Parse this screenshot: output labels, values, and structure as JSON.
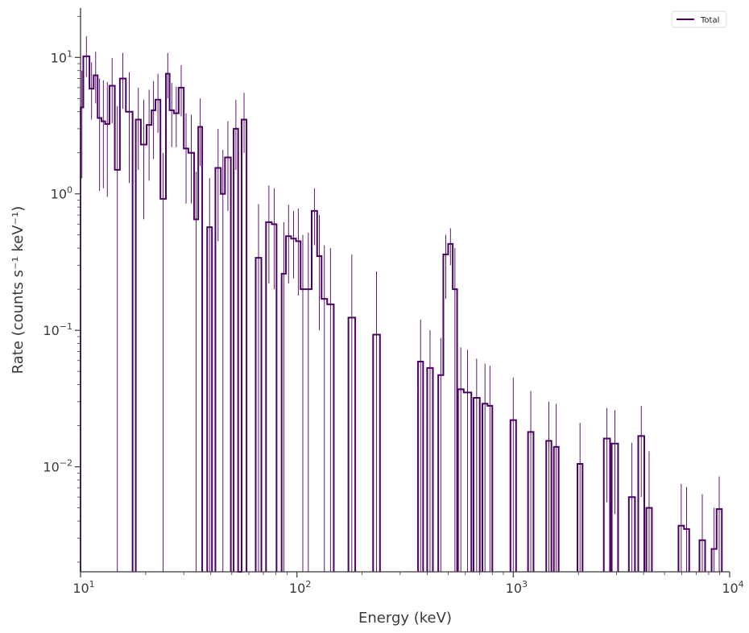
{
  "chart_data": {
    "type": "line",
    "style": "step histogram with error bars",
    "xlabel": "Energy (keV)",
    "ylabel": "Rate (counts s⁻¹ keV⁻¹)",
    "xscale": "log",
    "yscale": "log",
    "xlim": [
      10,
      10000
    ],
    "ylim": [
      0.0017,
      23
    ],
    "x_ticks": [
      {
        "value": 10,
        "base": "10",
        "exp": "1"
      },
      {
        "value": 100,
        "base": "10",
        "exp": "2"
      },
      {
        "value": 1000,
        "base": "10",
        "exp": "3"
      },
      {
        "value": 10000,
        "base": "10",
        "exp": "4"
      }
    ],
    "y_ticks": [
      {
        "value": 10,
        "base": "10",
        "exp": "1"
      },
      {
        "value": 1,
        "base": "10",
        "exp": "0"
      },
      {
        "value": 0.1,
        "base": "10",
        "exp": "−1"
      },
      {
        "value": 0.01,
        "base": "10",
        "exp": "−2"
      }
    ],
    "grid": false,
    "legend": {
      "position": "top-right",
      "entries": [
        "Total"
      ]
    },
    "colors": {
      "series": "#4b0063",
      "axis": "#3a3a3a"
    },
    "series": [
      {
        "name": "Total",
        "bins": [
          [
            10,
            10.3,
            4.3,
            1.3,
            8.0
          ],
          [
            10.3,
            11.0,
            10.2,
            7.2,
            14.3
          ],
          [
            11.0,
            11.5,
            5.9,
            3.5,
            9.2
          ],
          [
            11.5,
            12.0,
            7.4,
            4.6,
            11.0
          ],
          [
            12.0,
            12.5,
            3.6,
            1.05,
            7.0
          ],
          [
            12.5,
            13.0,
            3.4,
            1.1,
            6.8
          ],
          [
            13.0,
            13.6,
            3.25,
            0.95,
            6.6
          ],
          [
            13.6,
            14.4,
            6.2,
            3.3,
            9.9
          ],
          [
            14.4,
            15.2,
            1.5,
            0.0017,
            4.4
          ],
          [
            15.2,
            16.2,
            7.0,
            4.2,
            10.8
          ],
          [
            16.2,
            17.4,
            4.0,
            1.2,
            7.8
          ],
          [
            18.0,
            19.0,
            3.5,
            1.5,
            6.0
          ],
          [
            19.0,
            20.2,
            2.3,
            0.65,
            4.9
          ],
          [
            20.2,
            21.3,
            3.2,
            1.25,
            5.8
          ],
          [
            21.3,
            22.2,
            4.1,
            1.8,
            6.7
          ],
          [
            22.2,
            23.4,
            4.9,
            2.8,
            7.6
          ],
          [
            23.4,
            24.8,
            0.92,
            0.0017,
            2.0
          ],
          [
            24.8,
            25.8,
            7.6,
            5.0,
            10.8
          ],
          [
            25.8,
            27.0,
            4.1,
            2.2,
            6.5
          ],
          [
            27.0,
            28.4,
            3.9,
            2.2,
            6.1
          ],
          [
            28.4,
            30.0,
            6.0,
            3.7,
            8.8
          ],
          [
            30.0,
            31.5,
            2.15,
            0.85,
            3.9
          ],
          [
            31.5,
            33.5,
            2.0,
            0.85,
            3.8
          ],
          [
            33.5,
            35.0,
            0.65,
            0.0017,
            1.45
          ],
          [
            35.0,
            36.5,
            3.1,
            1.6,
            5.0
          ],
          [
            38.5,
            40.5,
            0.57,
            0.0017,
            1.3
          ],
          [
            42.0,
            44.5,
            1.55,
            0.45,
            3.0
          ],
          [
            44.5,
            46.5,
            1.0,
            0.0017,
            2.1
          ],
          [
            46.5,
            49.5,
            1.85,
            0.75,
            3.4
          ],
          [
            51.0,
            53.5,
            3.0,
            1.5,
            4.9
          ],
          [
            53.5,
            55.5,
            0.0017,
            0.0017,
            0.0017
          ],
          [
            55.5,
            58.5,
            3.5,
            2.0,
            5.5
          ],
          [
            64.5,
            68.5,
            0.34,
            0.0017,
            0.84
          ],
          [
            72.0,
            76.5,
            0.62,
            0.22,
            1.15
          ],
          [
            76.5,
            80.5,
            0.6,
            0.2,
            1.1
          ],
          [
            85.0,
            89.0,
            0.26,
            0.0017,
            0.62
          ],
          [
            89.0,
            94.0,
            0.49,
            0.22,
            0.83
          ],
          [
            94.0,
            99.0,
            0.47,
            0.24,
            0.75
          ],
          [
            99.0,
            104.0,
            0.45,
            0.18,
            0.78
          ],
          [
            104.0,
            109.0,
            0.2,
            0.0017,
            0.5
          ],
          [
            109.0,
            117.0,
            0.2,
            0.0017,
            0.52
          ],
          [
            117.0,
            124.0,
            0.75,
            0.42,
            1.1
          ],
          [
            124.0,
            130.0,
            0.35,
            0.1,
            0.7
          ],
          [
            130.0,
            138.0,
            0.17,
            0.0017,
            0.42
          ],
          [
            138.0,
            148.0,
            0.155,
            0.0017,
            0.4
          ],
          [
            173.0,
            186.0,
            0.124,
            0.0017,
            0.36
          ],
          [
            225.0,
            242.0,
            0.093,
            0.0017,
            0.27
          ],
          [
            363.0,
            383.0,
            0.059,
            0.0017,
            0.12
          ],
          [
            400.0,
            425.0,
            0.053,
            0.0017,
            0.1
          ],
          [
            450.0,
            475.0,
            0.047,
            0.0017,
            0.088
          ],
          [
            475.0,
            500.0,
            0.36,
            0.17,
            0.5
          ],
          [
            500.0,
            525.0,
            0.43,
            0.3,
            0.56
          ],
          [
            525.0,
            550.0,
            0.2,
            0.0017,
            0.4
          ],
          [
            555.0,
            590.0,
            0.037,
            0.0017,
            0.075
          ],
          [
            590.0,
            640.0,
            0.035,
            0.0017,
            0.072
          ],
          [
            655.0,
            700.0,
            0.032,
            0.0017,
            0.062
          ],
          [
            720.0,
            760.0,
            0.029,
            0.0017,
            0.057
          ],
          [
            760.0,
            800.0,
            0.028,
            0.0017,
            0.055
          ],
          [
            970.0,
            1030.0,
            0.022,
            0.0017,
            0.045
          ],
          [
            1170.0,
            1240.0,
            0.018,
            0.0017,
            0.036
          ],
          [
            1420.0,
            1500.0,
            0.0155,
            0.0017,
            0.03
          ],
          [
            1540.0,
            1620.0,
            0.014,
            0.0017,
            0.029
          ],
          [
            1980.0,
            2090.0,
            0.0105,
            0.0017,
            0.021
          ],
          [
            2620.0,
            2800.0,
            0.0161,
            0.0055,
            0.027
          ],
          [
            2850.0,
            3050.0,
            0.0148,
            0.0045,
            0.026
          ],
          [
            3420.0,
            3650.0,
            0.006,
            0.0017,
            0.015
          ],
          [
            3780.0,
            4030.0,
            0.0168,
            0.006,
            0.028
          ],
          [
            4120.0,
            4370.0,
            0.005,
            0.0017,
            0.013
          ],
          [
            5800.0,
            6150.0,
            0.0037,
            0.0017,
            0.0075
          ],
          [
            6150.0,
            6500.0,
            0.0035,
            0.0017,
            0.0071
          ],
          [
            7250.0,
            7700.0,
            0.0029,
            0.0017,
            0.0063
          ],
          [
            8250.0,
            8700.0,
            0.0025,
            0.0017,
            0.005
          ],
          [
            8700.0,
            9200.0,
            0.0049,
            0.0017,
            0.0085
          ]
        ]
      }
    ]
  }
}
